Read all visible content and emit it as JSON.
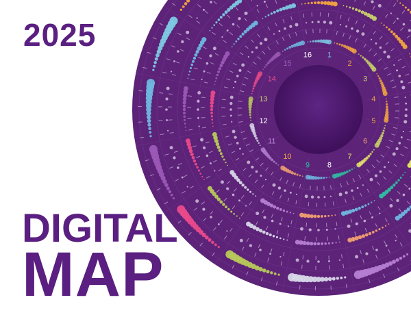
{
  "year": "2025",
  "title_line1": "DIGITAL",
  "title_line2": "MAP",
  "colors": {
    "brand": "#5a1f80",
    "disc": "#5c2378",
    "center": "#4a1468",
    "band_colors": [
      "#7ec8e3",
      "#f2a541",
      "#c9d26b",
      "#f2a541",
      "#f2a541",
      "#c9d26b",
      "#e8e86b",
      "#2fbfa0",
      "#6fb7e0",
      "#f0a070",
      "#b57fd1",
      "#d7d7e8",
      "#b7c95a",
      "#e84a8a",
      "#9b59b6",
      "#6fb7e0"
    ]
  },
  "sectors": [
    {
      "label": "1",
      "color": "#7ec8e3"
    },
    {
      "label": "2",
      "color": "#f2a541"
    },
    {
      "label": "3",
      "color": "#c9d26b"
    },
    {
      "label": "4",
      "color": "#f2a541"
    },
    {
      "label": "5",
      "color": "#f2a541"
    },
    {
      "label": "6",
      "color": "#f0a070"
    },
    {
      "label": "7",
      "color": "#e8e86b"
    },
    {
      "label": "8",
      "color": "#ffffff"
    },
    {
      "label": "9",
      "color": "#2fbfa0"
    },
    {
      "label": "10",
      "color": "#f2a541"
    },
    {
      "label": "11",
      "color": "#b57fd1"
    },
    {
      "label": "12",
      "color": "#ffffff"
    },
    {
      "label": "13",
      "color": "#c9d26b"
    },
    {
      "label": "14",
      "color": "#e84a8a"
    },
    {
      "label": "15",
      "color": "#9b59b6"
    },
    {
      "label": "16",
      "color": "#ffffff"
    }
  ]
}
